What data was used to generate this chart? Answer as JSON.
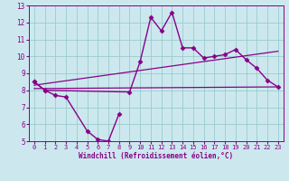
{
  "bg_color": "#cce8ee",
  "line_color": "#880088",
  "grid_color": "#99cccc",
  "xlabel": "Windchill (Refroidissement éolien,°C)",
  "xlim": [
    -0.5,
    23.5
  ],
  "ylim": [
    5,
    13
  ],
  "xticks": [
    0,
    1,
    2,
    3,
    4,
    5,
    6,
    7,
    8,
    9,
    10,
    11,
    12,
    13,
    14,
    15,
    16,
    17,
    18,
    19,
    20,
    21,
    22,
    23
  ],
  "yticks": [
    5,
    6,
    7,
    8,
    9,
    10,
    11,
    12,
    13
  ],
  "series": [
    {
      "x": [
        0,
        1,
        2,
        3,
        5,
        6,
        7,
        8
      ],
      "y": [
        8.5,
        8.0,
        7.7,
        7.6,
        5.6,
        5.1,
        5.0,
        6.6
      ],
      "marker": "D",
      "markersize": 2.5,
      "linewidth": 1.0
    },
    {
      "x": [
        0,
        1,
        9,
        10,
        11,
        12,
        13,
        14,
        15,
        16,
        17,
        18,
        19,
        20,
        21,
        22,
        23
      ],
      "y": [
        8.5,
        8.0,
        7.9,
        9.7,
        12.3,
        11.5,
        12.6,
        10.5,
        10.5,
        9.9,
        10.0,
        10.1,
        10.4,
        9.8,
        9.3,
        8.6,
        8.2
      ],
      "marker": "D",
      "markersize": 2.5,
      "linewidth": 1.0
    },
    {
      "x": [
        0,
        23
      ],
      "y": [
        8.3,
        10.3
      ],
      "marker": null,
      "markersize": 0,
      "linewidth": 0.9
    },
    {
      "x": [
        0,
        23
      ],
      "y": [
        8.1,
        8.2
      ],
      "marker": null,
      "markersize": 0,
      "linewidth": 0.9
    }
  ]
}
